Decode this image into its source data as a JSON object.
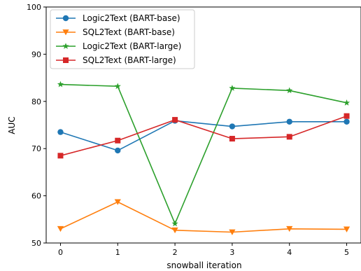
{
  "chart_data": {
    "type": "line",
    "xlabel": "snowball iteration",
    "ylabel": "AUC",
    "x": [
      0,
      1,
      2,
      3,
      4,
      5
    ],
    "xlim": [
      -0.25,
      5.25
    ],
    "ylim": [
      50,
      100
    ],
    "xticks": [
      "0",
      "1",
      "2",
      "3",
      "4",
      "5"
    ],
    "yticks": [
      "50",
      "60",
      "70",
      "80",
      "90",
      "100"
    ],
    "grid": false,
    "legend_position": "top-left",
    "series": [
      {
        "name": "Logic2Text (BART-base)",
        "color": "#1f77b4",
        "marker": "circle",
        "values": [
          73.5,
          69.6,
          75.9,
          74.7,
          75.7,
          75.7
        ]
      },
      {
        "name": "SQL2Text (BART-base)",
        "color": "#ff7f0e",
        "marker": "triangle-down",
        "values": [
          53.0,
          58.7,
          52.7,
          52.3,
          53.0,
          52.9
        ]
      },
      {
        "name": "Logic2Text (BART-large)",
        "color": "#2ca02c",
        "marker": "star",
        "values": [
          83.6,
          83.2,
          54.1,
          82.8,
          82.3,
          79.7
        ]
      },
      {
        "name": "SQL2Text (BART-large)",
        "color": "#d62728",
        "marker": "square",
        "values": [
          68.5,
          71.7,
          76.1,
          72.1,
          72.5,
          76.9
        ]
      }
    ]
  }
}
